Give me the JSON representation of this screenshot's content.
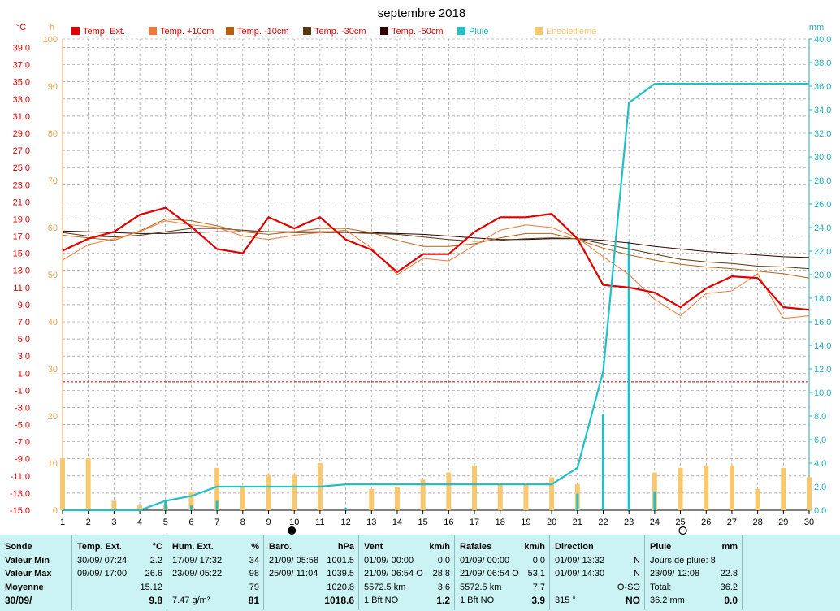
{
  "chart_data": {
    "type": "line",
    "title": "septembre 2018",
    "x": [
      1,
      2,
      3,
      4,
      5,
      6,
      7,
      8,
      9,
      10,
      11,
      12,
      13,
      14,
      15,
      16,
      17,
      18,
      19,
      20,
      21,
      22,
      23,
      24,
      25,
      26,
      27,
      28,
      29,
      30
    ],
    "axis_left1": {
      "unit": "°C",
      "min": -15,
      "max": 40,
      "ticks": [
        "39.0",
        "37.0",
        "35.0",
        "33.0",
        "31.0",
        "29.0",
        "27.0",
        "25.0",
        "23.0",
        "21.0",
        "19.0",
        "17.0",
        "15.0",
        "13.0",
        "11.0",
        "9.0",
        "7.0",
        "5.0",
        "3.0",
        "1.0",
        "-1.0",
        "-3.0",
        "-5.0",
        "-7.0",
        "-9.0",
        "-11.0",
        "-13.0",
        "-15.0"
      ]
    },
    "axis_left2": {
      "unit": "h",
      "min": 0,
      "max": 100,
      "ticks": [
        "100",
        "90",
        "80",
        "70",
        "60",
        "50",
        "40",
        "30",
        "20",
        "10",
        "0"
      ]
    },
    "axis_right": {
      "unit": "mm",
      "min": 0,
      "max": 40,
      "ticks": [
        "40.0",
        "38.0",
        "36.0",
        "34.0",
        "32.0",
        "30.0",
        "28.0",
        "26.0",
        "24.0",
        "22.0",
        "20.0",
        "18.0",
        "16.0",
        "14.0",
        "12.0",
        "10.0",
        "8.0",
        "6.0",
        "4.0",
        "2.0",
        "0.0"
      ]
    },
    "freeze_line_c": 0,
    "series": [
      {
        "name": "Temp. Ext.",
        "color": "#e00000",
        "width": 2.2,
        "values": [
          15.3,
          16.7,
          17.5,
          19.5,
          20.3,
          18.1,
          15.5,
          15.0,
          19.2,
          17.9,
          19.2,
          16.6,
          15.4,
          12.8,
          14.9,
          14.9,
          17.5,
          19.2,
          19.2,
          19.6,
          16.7,
          11.3,
          11.0,
          10.4,
          8.7,
          10.9,
          12.3,
          12.1,
          8.7,
          8.4
        ]
      },
      {
        "name": "Temp. +10cm",
        "color": "#f07838",
        "width": 1,
        "values": [
          14.2,
          16.0,
          16.7,
          17.5,
          18.8,
          18.3,
          18.0,
          17.0,
          16.6,
          17.1,
          17.4,
          17.7,
          15.6,
          12.5,
          14.4,
          14.1,
          15.9,
          17.7,
          18.3,
          18.0,
          16.8,
          14.6,
          12.5,
          9.6,
          7.7,
          10.3,
          10.6,
          12.6,
          7.4,
          7.7
        ]
      },
      {
        "name": "Temp. -10cm",
        "color": "#b86010",
        "width": 1,
        "values": [
          17.1,
          16.8,
          16.5,
          17.6,
          19.0,
          18.8,
          18.2,
          17.5,
          17.2,
          17.5,
          17.9,
          17.9,
          17.4,
          16.5,
          15.8,
          15.8,
          16.1,
          16.8,
          17.3,
          17.3,
          16.6,
          15.6,
          14.8,
          14.2,
          13.7,
          13.4,
          13.2,
          12.9,
          12.6,
          12.1
        ]
      },
      {
        "name": "Temp. -30cm",
        "color": "#583810",
        "width": 1,
        "values": [
          17.4,
          17.0,
          16.9,
          17.1,
          17.5,
          17.9,
          17.9,
          17.7,
          17.5,
          17.4,
          17.4,
          17.4,
          17.3,
          17.2,
          16.9,
          16.6,
          16.4,
          16.5,
          16.7,
          16.8,
          16.7,
          16.1,
          15.5,
          14.9,
          14.3,
          14.0,
          13.8,
          13.5,
          13.4,
          13.2
        ]
      },
      {
        "name": "Temp. -50cm",
        "color": "#300000",
        "width": 1,
        "values": [
          17.6,
          17.5,
          17.4,
          17.3,
          17.3,
          17.4,
          17.5,
          17.5,
          17.5,
          17.5,
          17.5,
          17.5,
          17.4,
          17.3,
          17.2,
          17.0,
          16.8,
          16.6,
          16.6,
          16.7,
          16.7,
          16.5,
          16.2,
          15.8,
          15.5,
          15.2,
          15.0,
          14.8,
          14.6,
          14.5
        ]
      },
      {
        "name": "Pluie",
        "color": "#20c0c8",
        "width": 2.2,
        "cumulative": [
          0,
          0,
          0,
          0,
          0.8,
          1.2,
          2.0,
          2.0,
          2.0,
          2.0,
          2.0,
          2.2,
          2.2,
          2.2,
          2.2,
          2.2,
          2.2,
          2.2,
          2.2,
          2.2,
          3.6,
          11.8,
          34.6,
          36.2,
          36.2,
          36.2,
          36.2,
          36.2,
          36.2,
          36.2
        ]
      },
      {
        "name": "Ensoleilleme",
        "color": "#f8c870",
        "type": "bar"
      }
    ],
    "rain_bars_mm": [
      [
        5,
        0.8
      ],
      [
        6,
        0.4
      ],
      [
        7,
        0.8
      ],
      [
        12,
        0.2
      ],
      [
        21,
        1.4
      ],
      [
        22,
        8.2
      ],
      [
        23,
        22.8
      ],
      [
        24,
        1.6
      ]
    ],
    "sunshine_h": [
      11.0,
      11.0,
      2.0,
      1.0,
      1.0,
      4.0,
      9.0,
      5.0,
      7.5,
      7.5,
      10.0,
      0,
      4.5,
      5.0,
      6.5,
      8.0,
      9.5,
      5.5,
      5.5,
      7.0,
      5.5,
      0,
      0,
      8.0,
      9.0,
      9.5,
      9.5,
      4.5,
      9.0,
      7.0
    ],
    "markers": {
      "new_moon_day": 10,
      "full_moon_day": 25
    }
  },
  "legend": {
    "temp_ext": "Temp. Ext.",
    "temp_p10": "Temp. +10cm",
    "temp_m10": "Temp. -10cm",
    "temp_m30": "Temp. -30cm",
    "temp_m50": "Temp. -50cm",
    "pluie": "Pluie",
    "soleil": "Ensoleilleme"
  },
  "panel": {
    "sonde": {
      "header": "Sonde",
      "rows": [
        "Valeur Min",
        "Valeur Max",
        "Moyenne",
        "30/09/"
      ]
    },
    "temp": {
      "header": "Temp. Ext.",
      "unit": "°C",
      "min_when": "30/09/  07:24",
      "min": "2.2",
      "max_when": "09/09/  17:00",
      "max": "26.6",
      "avg": "15.12",
      "last": "9.8"
    },
    "hum": {
      "header": "Hum. Ext.",
      "unit": "%",
      "min_when": "17/09/  17:32",
      "min": "34",
      "max_when": "23/09/  05:22",
      "max": "98",
      "avg": "79",
      "abs": "7.47 g/m²",
      "last": "81"
    },
    "baro": {
      "header": "Baro.",
      "unit": "hPa",
      "min_when": "21/09/  05:58",
      "min": "1001.5",
      "max_when": "25/09/  11:04",
      "max": "1039.5",
      "avg": "1020.8",
      "last": "1018.6"
    },
    "vent": {
      "header": "Vent",
      "unit": "km/h",
      "min_when": "01/09/  00:00",
      "min": "0.0",
      "max_when": "21/09/  06:54  O",
      "max": "28.8",
      "dist": "5572.5 km",
      "avg": "3.6",
      "bft": "1 Bft NO",
      "last": "1.2"
    },
    "rafales": {
      "header": "Rafales",
      "unit": "km/h",
      "min_when": "01/09/  00:00",
      "min": "0.0",
      "max_when": "21/09/  06:54  O",
      "max": "53.1",
      "dist": "5572.5 km",
      "avg": "7.7",
      "bft": "1 Bft NO",
      "last": "3.9"
    },
    "direction": {
      "header": "Direction",
      "min_when": "01/09/  13:32",
      "min": "N",
      "max_when": "01/09/  14:30",
      "max": "N",
      "avg": "O-SO",
      "deg": "315 °",
      "last": "NO"
    },
    "pluie": {
      "header": "Pluie",
      "unit": "mm",
      "jours": "Jours de pluie: 8",
      "max_when": "23/09/  12:08",
      "max": "22.8",
      "total_label": "Total:",
      "total": "36.2",
      "last_total": "36.2 mm",
      "last": "0.0"
    }
  }
}
